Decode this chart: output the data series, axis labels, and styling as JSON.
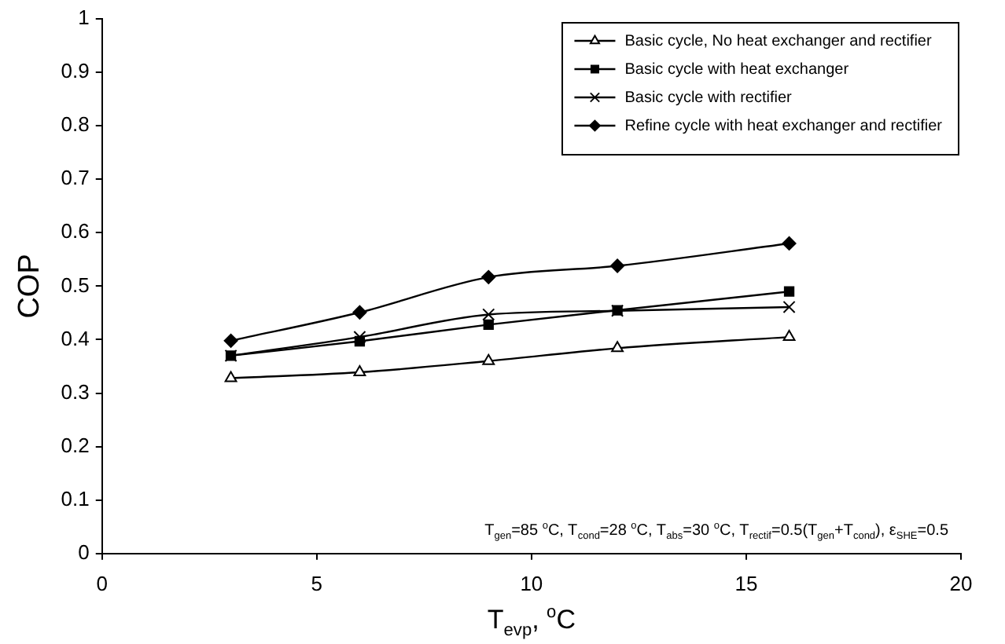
{
  "chart_data": {
    "type": "line",
    "xlabel": "T$_{evp}$, $^{o}$C",
    "ylabel": "COP",
    "x": [
      3,
      6,
      9,
      12,
      16
    ],
    "series": [
      {
        "name": "Basic cycle, No heat exchanger and rectifier",
        "color": "#000000",
        "marker": "triangle",
        "values": [
          0.328,
          0.339,
          0.36,
          0.384,
          0.405
        ]
      },
      {
        "name": "Basic cycle with heat exchanger",
        "color": "#000000",
        "marker": "square",
        "values": [
          0.37,
          0.397,
          0.428,
          0.455,
          0.49
        ]
      },
      {
        "name": "Basic cycle with rectifier",
        "color": "#000000",
        "marker": "cross",
        "values": [
          0.37,
          0.405,
          0.447,
          0.454,
          0.461
        ]
      },
      {
        "name": "Refine cycle with heat exchanger and rectifier",
        "color": "#000000",
        "marker": "diamond",
        "values": [
          0.398,
          0.451,
          0.517,
          0.538,
          0.58
        ]
      }
    ],
    "xlim": [
      0,
      20
    ],
    "xticks": [
      0,
      5,
      10,
      15,
      20
    ],
    "ylim": [
      0,
      1
    ],
    "yticks": [
      0,
      0.1,
      0.2,
      0.3,
      0.4,
      0.5,
      0.6,
      0.7,
      0.8,
      0.9,
      1
    ],
    "grid": false,
    "legend": "top right",
    "line_style": "solid",
    "annotations": [
      "T$_{gen}$=85 $^{o}$C, T$_{cond}$=28 $^{o}$C, T$_{abs}$=30 $^{o}$C, T$_{rectif}$=0.5(T$_{gen}$+T$_{cond}$), ε$_{SHE}$=0.5"
    ]
  }
}
